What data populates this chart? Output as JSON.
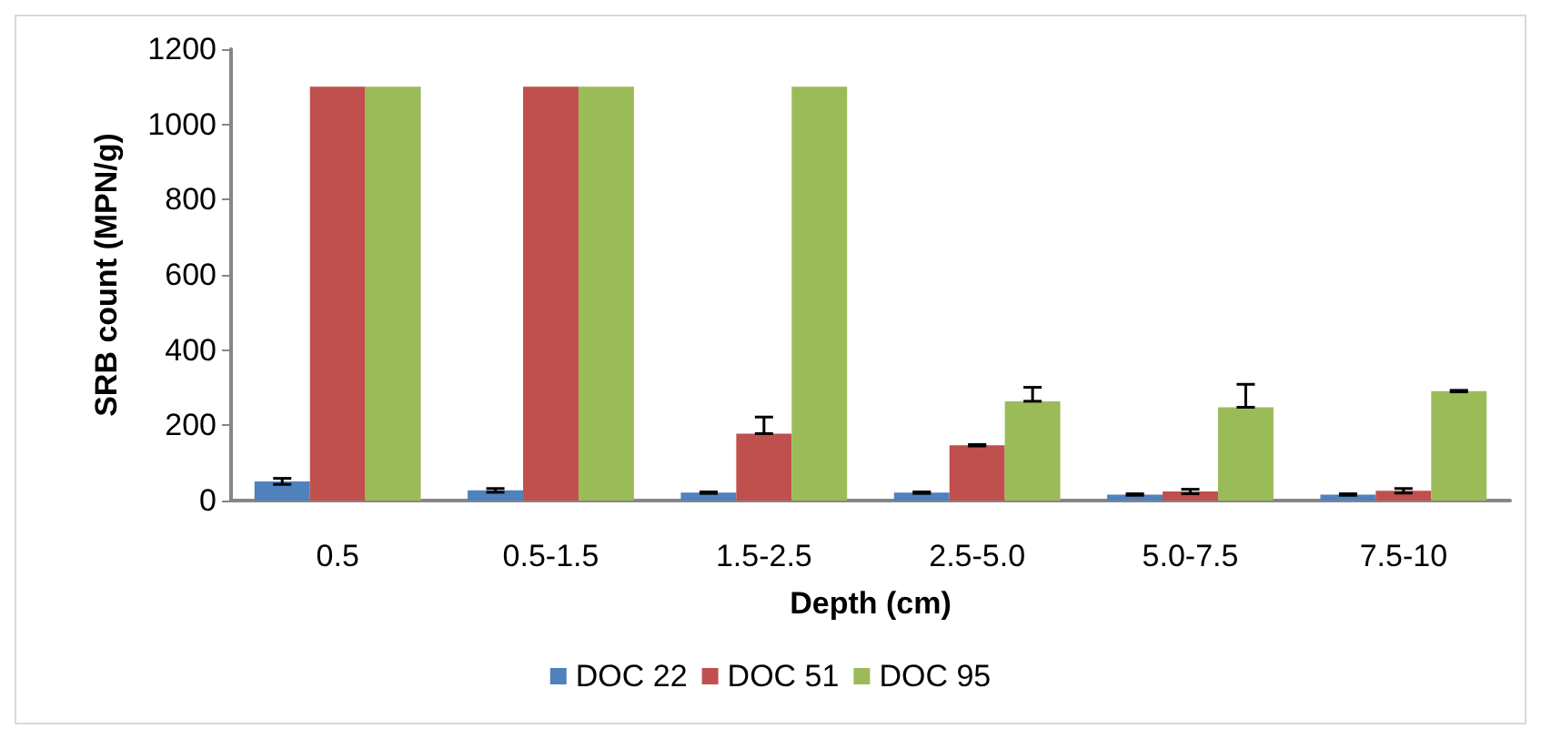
{
  "chart_data": {
    "type": "bar",
    "xlabel": "Depth (cm)",
    "ylabel": "SRB count (MPN/g)",
    "categories": [
      "0.5",
      "0.5-1.5",
      "1.5-2.5",
      "2.5-5.0",
      "5.0-7.5",
      "7.5-10"
    ],
    "series": [
      {
        "name": "DOC 22",
        "color": "#4f81bd",
        "values": [
          51,
          27,
          21,
          21,
          16,
          16
        ],
        "errors": [
          8,
          5,
          2,
          2,
          2,
          2
        ]
      },
      {
        "name": "DOC 51",
        "color": "#c0504d",
        "values": [
          1100,
          1100,
          178,
          147,
          24,
          26
        ],
        "errors": [
          null,
          null,
          [
            178,
            222
          ],
          2,
          6,
          6
        ]
      },
      {
        "name": "DOC 95",
        "color": "#9bbb59",
        "values": [
          1100,
          1100,
          1100,
          264,
          248,
          291
        ],
        "errors": [
          null,
          null,
          null,
          [
            264,
            301
          ],
          [
            248,
            309
          ],
          2
        ]
      }
    ],
    "ylim": [
      0,
      1200
    ],
    "yticks": [
      0,
      200,
      400,
      600,
      800,
      1000,
      1200
    ],
    "grid": false,
    "legend": "bottom"
  }
}
